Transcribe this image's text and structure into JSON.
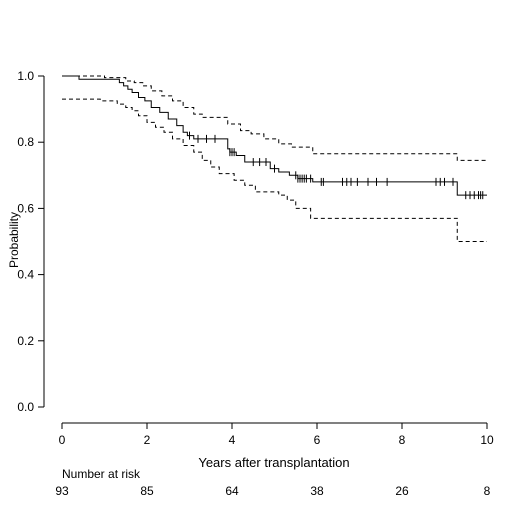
{
  "chart_data": {
    "type": "line",
    "title": "",
    "xlabel": "Years after transplantation",
    "ylabel": "Probability",
    "xlim": [
      0,
      10
    ],
    "ylim": [
      0.0,
      1.0
    ],
    "xticks": [
      0,
      2,
      4,
      6,
      8,
      10
    ],
    "yticks": [
      "0.0",
      "0.2",
      "0.4",
      "0.6",
      "0.8",
      "1.0"
    ],
    "grid": false,
    "series": [
      {
        "style": "solid",
        "step": [
          [
            0,
            1.0
          ],
          [
            0.4,
            0.99
          ],
          [
            1.35,
            0.98
          ],
          [
            1.45,
            0.97
          ],
          [
            1.55,
            0.96
          ],
          [
            1.65,
            0.95
          ],
          [
            1.8,
            0.935
          ],
          [
            1.95,
            0.925
          ],
          [
            2.1,
            0.905
          ],
          [
            2.3,
            0.89
          ],
          [
            2.5,
            0.87
          ],
          [
            2.7,
            0.85
          ],
          [
            2.85,
            0.83
          ],
          [
            2.95,
            0.82
          ],
          [
            3.1,
            0.81
          ],
          [
            3.9,
            0.78
          ],
          [
            3.95,
            0.77
          ],
          [
            4.1,
            0.76
          ],
          [
            4.3,
            0.74
          ],
          [
            4.9,
            0.72
          ],
          [
            5.1,
            0.71
          ],
          [
            5.35,
            0.7
          ],
          [
            5.55,
            0.69
          ],
          [
            5.9,
            0.68
          ],
          [
            9.3,
            0.64
          ],
          [
            10,
            0.64
          ]
        ],
        "censored": [
          3.0,
          3.2,
          3.4,
          3.6,
          3.95,
          4.0,
          4.05,
          4.5,
          4.65,
          4.8,
          5.0,
          5.5,
          5.55,
          5.6,
          5.65,
          5.7,
          5.75,
          5.85,
          6.1,
          6.15,
          6.6,
          6.7,
          6.8,
          6.95,
          7.2,
          7.4,
          7.65,
          8.8,
          8.9,
          9.0,
          9.2,
          9.5,
          9.6,
          9.7,
          9.8,
          9.85,
          9.9
        ]
      },
      {
        "style": "dashed",
        "step": [
          [
            0,
            1.0
          ],
          [
            1.0,
            0.995
          ],
          [
            1.5,
            0.985
          ],
          [
            1.7,
            0.98
          ],
          [
            1.9,
            0.97
          ],
          [
            2.1,
            0.955
          ],
          [
            2.35,
            0.94
          ],
          [
            2.6,
            0.925
          ],
          [
            2.85,
            0.905
          ],
          [
            3.1,
            0.885
          ],
          [
            3.3,
            0.875
          ],
          [
            3.9,
            0.855
          ],
          [
            4.2,
            0.835
          ],
          [
            4.45,
            0.825
          ],
          [
            4.75,
            0.81
          ],
          [
            5.1,
            0.795
          ],
          [
            5.4,
            0.785
          ],
          [
            5.9,
            0.765
          ],
          [
            9.3,
            0.745
          ],
          [
            10,
            0.745
          ]
        ]
      },
      {
        "style": "dashed",
        "step": [
          [
            0,
            0.93
          ],
          [
            0.9,
            0.925
          ],
          [
            1.3,
            0.915
          ],
          [
            1.5,
            0.905
          ],
          [
            1.65,
            0.895
          ],
          [
            1.8,
            0.88
          ],
          [
            2.0,
            0.86
          ],
          [
            2.2,
            0.845
          ],
          [
            2.4,
            0.83
          ],
          [
            2.6,
            0.81
          ],
          [
            2.85,
            0.79
          ],
          [
            3.1,
            0.77
          ],
          [
            3.3,
            0.745
          ],
          [
            3.5,
            0.725
          ],
          [
            3.7,
            0.705
          ],
          [
            4.05,
            0.685
          ],
          [
            4.3,
            0.67
          ],
          [
            4.55,
            0.65
          ],
          [
            5.1,
            0.64
          ],
          [
            5.3,
            0.625
          ],
          [
            5.5,
            0.6
          ],
          [
            5.85,
            0.57
          ],
          [
            9.3,
            0.5
          ],
          [
            10,
            0.5
          ]
        ]
      }
    ],
    "risk_table": {
      "title": "Number at risk",
      "times": [
        0,
        2,
        4,
        6,
        8,
        10
      ],
      "counts": [
        "93",
        "85",
        "64",
        "38",
        "26",
        "8"
      ]
    }
  }
}
